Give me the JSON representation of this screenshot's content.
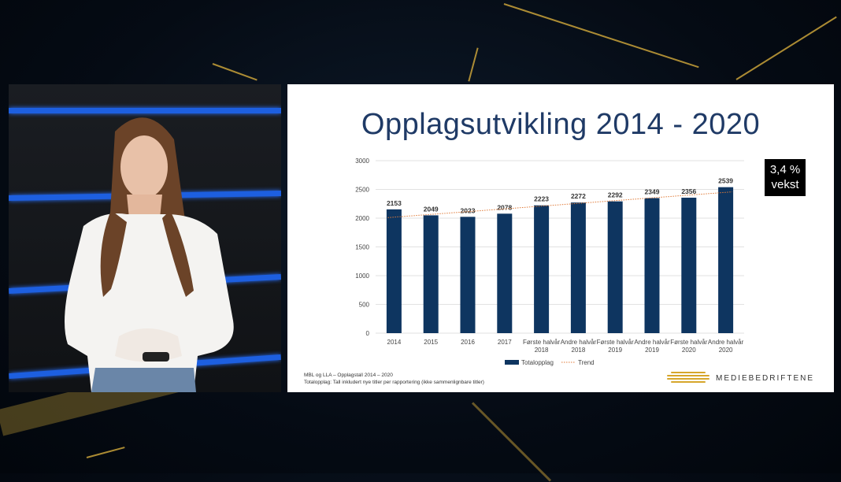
{
  "slide": {
    "title": "Opplagsutvikling 2014 - 2020",
    "badge_line1": "3,4 %",
    "badge_line2": "vekst",
    "source_line1": "MBL og LLA – Opplagstall 2014 – 2020",
    "source_line2": "Totalopplag: Tall inkludert nye titler per rapportering (ikke sammenlignbare titler)",
    "logo_text": "MEDIEBEDRIFTENE"
  },
  "colors": {
    "bar": "#0e3560",
    "trend": "#e07b39",
    "title": "#1f3a66",
    "stripe": "#1d5fe0",
    "accent_gold": "#c9a23a"
  },
  "chart_data": {
    "type": "bar",
    "categories": [
      [
        "2014"
      ],
      [
        "2015"
      ],
      [
        "2016"
      ],
      [
        "2017"
      ],
      [
        "Første halvår",
        "2018"
      ],
      [
        "Andre halvår",
        "2018"
      ],
      [
        "Første halvår",
        "2019"
      ],
      [
        "Andre halvår",
        "2019"
      ],
      [
        "Første halvår",
        "2020"
      ],
      [
        "Andre halvår",
        "2020"
      ]
    ],
    "series": [
      {
        "name": "Totalopplag",
        "values": [
          2153,
          2049,
          2023,
          2078,
          2223,
          2272,
          2292,
          2349,
          2356,
          2539
        ]
      }
    ],
    "trend": {
      "name": "Trend",
      "style": "dotted"
    },
    "ylim": [
      0,
      3000
    ],
    "yticks": [
      0,
      500,
      1000,
      1500,
      2000,
      2500,
      3000
    ],
    "grid": true,
    "legend": "bottom"
  }
}
